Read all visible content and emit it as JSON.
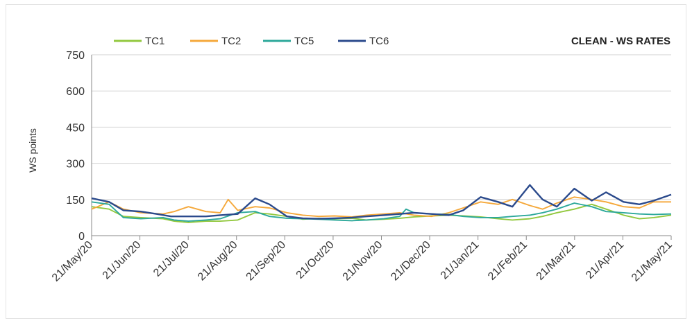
{
  "chart_data": {
    "type": "line",
    "title": "CLEAN - WS RATES",
    "ylabel": "WS points",
    "xlabel": "",
    "ylim": [
      0,
      750
    ],
    "yticks": [
      0,
      150,
      300,
      450,
      600,
      750
    ],
    "x_ticks": [
      "21/May/20",
      "21/Jun/20",
      "21/Jul/20",
      "21/Aug/20",
      "21/Sep/20",
      "21/Oct/20",
      "21/Nov/20",
      "21/Dec/20",
      "21/Jan/21",
      "21/Feb/21",
      "21/Mar/21",
      "21/Apr/21",
      "21/May/21"
    ],
    "grid": true,
    "legend_position": "top-left",
    "series": [
      {
        "name": "TC1",
        "color": "#92c83e",
        "x": [
          "2020-05-21",
          "2020-06-01",
          "2020-06-10",
          "2020-06-21",
          "2020-07-05",
          "2020-07-12",
          "2020-07-21",
          "2020-08-01",
          "2020-08-10",
          "2020-08-21",
          "2020-09-01",
          "2020-09-10",
          "2020-09-21",
          "2020-10-01",
          "2020-10-11",
          "2020-10-21",
          "2020-11-01",
          "2020-11-10",
          "2020-11-21",
          "2020-12-01",
          "2020-12-10",
          "2020-12-21",
          "2021-01-01",
          "2021-01-10",
          "2021-01-21",
          "2021-02-01",
          "2021-02-10",
          "2021-02-21",
          "2021-03-01",
          "2021-03-10",
          "2021-03-21",
          "2021-04-01",
          "2021-04-10",
          "2021-04-21",
          "2021-05-01",
          "2021-05-10",
          "2021-05-21"
        ],
        "y": [
          120,
          110,
          80,
          75,
          70,
          60,
          55,
          60,
          60,
          65,
          95,
          90,
          80,
          68,
          72,
          70,
          72,
          65,
          68,
          72,
          78,
          82,
          85,
          82,
          78,
          70,
          65,
          70,
          80,
          95,
          110,
          130,
          110,
          85,
          70,
          75,
          85
        ]
      },
      {
        "name": "TC2",
        "color": "#f5a83a",
        "x": [
          "2020-05-21",
          "2020-06-01",
          "2020-06-10",
          "2020-06-21",
          "2020-07-05",
          "2020-07-12",
          "2020-07-21",
          "2020-08-01",
          "2020-08-10",
          "2020-08-15",
          "2020-08-21",
          "2020-09-01",
          "2020-09-10",
          "2020-09-21",
          "2020-10-01",
          "2020-10-11",
          "2020-10-21",
          "2020-11-01",
          "2020-11-10",
          "2020-11-21",
          "2020-12-01",
          "2020-12-10",
          "2020-12-21",
          "2021-01-01",
          "2021-01-10",
          "2021-01-21",
          "2021-02-01",
          "2021-02-10",
          "2021-02-21",
          "2021-03-01",
          "2021-03-10",
          "2021-03-21",
          "2021-04-01",
          "2021-04-10",
          "2021-04-21",
          "2021-05-01",
          "2021-05-10",
          "2021-05-21"
        ],
        "y": [
          110,
          140,
          110,
          95,
          90,
          100,
          120,
          100,
          95,
          150,
          105,
          120,
          115,
          95,
          85,
          80,
          82,
          78,
          85,
          90,
          95,
          85,
          80,
          95,
          115,
          140,
          130,
          150,
          125,
          110,
          135,
          160,
          150,
          140,
          120,
          115,
          140,
          140
        ]
      },
      {
        "name": "TC5",
        "color": "#2ca89a",
        "x": [
          "2020-05-21",
          "2020-06-01",
          "2020-06-10",
          "2020-06-21",
          "2020-07-05",
          "2020-07-12",
          "2020-07-21",
          "2020-08-01",
          "2020-08-10",
          "2020-08-21",
          "2020-09-01",
          "2020-09-10",
          "2020-09-21",
          "2020-10-01",
          "2020-10-11",
          "2020-10-21",
          "2020-11-01",
          "2020-11-10",
          "2020-11-21",
          "2020-12-01",
          "2020-12-05",
          "2020-12-10",
          "2020-12-21",
          "2021-01-01",
          "2021-01-10",
          "2021-01-21",
          "2021-02-01",
          "2021-02-10",
          "2021-02-21",
          "2021-03-01",
          "2021-03-10",
          "2021-03-21",
          "2021-04-01",
          "2021-04-10",
          "2021-04-21",
          "2021-05-01",
          "2021-05-10",
          "2021-05-21"
        ],
        "y": [
          140,
          130,
          75,
          70,
          75,
          65,
          60,
          65,
          70,
          95,
          100,
          80,
          72,
          70,
          68,
          65,
          62,
          65,
          70,
          80,
          110,
          95,
          90,
          88,
          80,
          75,
          75,
          80,
          85,
          95,
          110,
          135,
          120,
          100,
          95,
          90,
          88,
          90
        ]
      },
      {
        "name": "TC6",
        "color": "#2b4a8c",
        "x": [
          "2020-05-21",
          "2020-06-01",
          "2020-06-10",
          "2020-06-21",
          "2020-07-01",
          "2020-07-10",
          "2020-07-21",
          "2020-08-01",
          "2020-08-10",
          "2020-08-21",
          "2020-09-01",
          "2020-09-10",
          "2020-09-21",
          "2020-10-01",
          "2020-10-11",
          "2020-10-21",
          "2020-11-01",
          "2020-11-10",
          "2020-11-21",
          "2020-12-01",
          "2020-12-10",
          "2020-12-21",
          "2021-01-01",
          "2021-01-10",
          "2021-01-21",
          "2021-02-01",
          "2021-02-10",
          "2021-02-21",
          "2021-03-01",
          "2021-03-10",
          "2021-03-21",
          "2021-04-01",
          "2021-04-10",
          "2021-04-21",
          "2021-05-01",
          "2021-05-10",
          "2021-05-21"
        ],
        "y": [
          155,
          140,
          105,
          100,
          90,
          80,
          80,
          80,
          85,
          90,
          155,
          130,
          80,
          72,
          70,
          72,
          75,
          80,
          85,
          90,
          95,
          90,
          85,
          105,
          160,
          140,
          120,
          210,
          150,
          120,
          195,
          145,
          180,
          140,
          130,
          145,
          170
        ]
      }
    ]
  }
}
